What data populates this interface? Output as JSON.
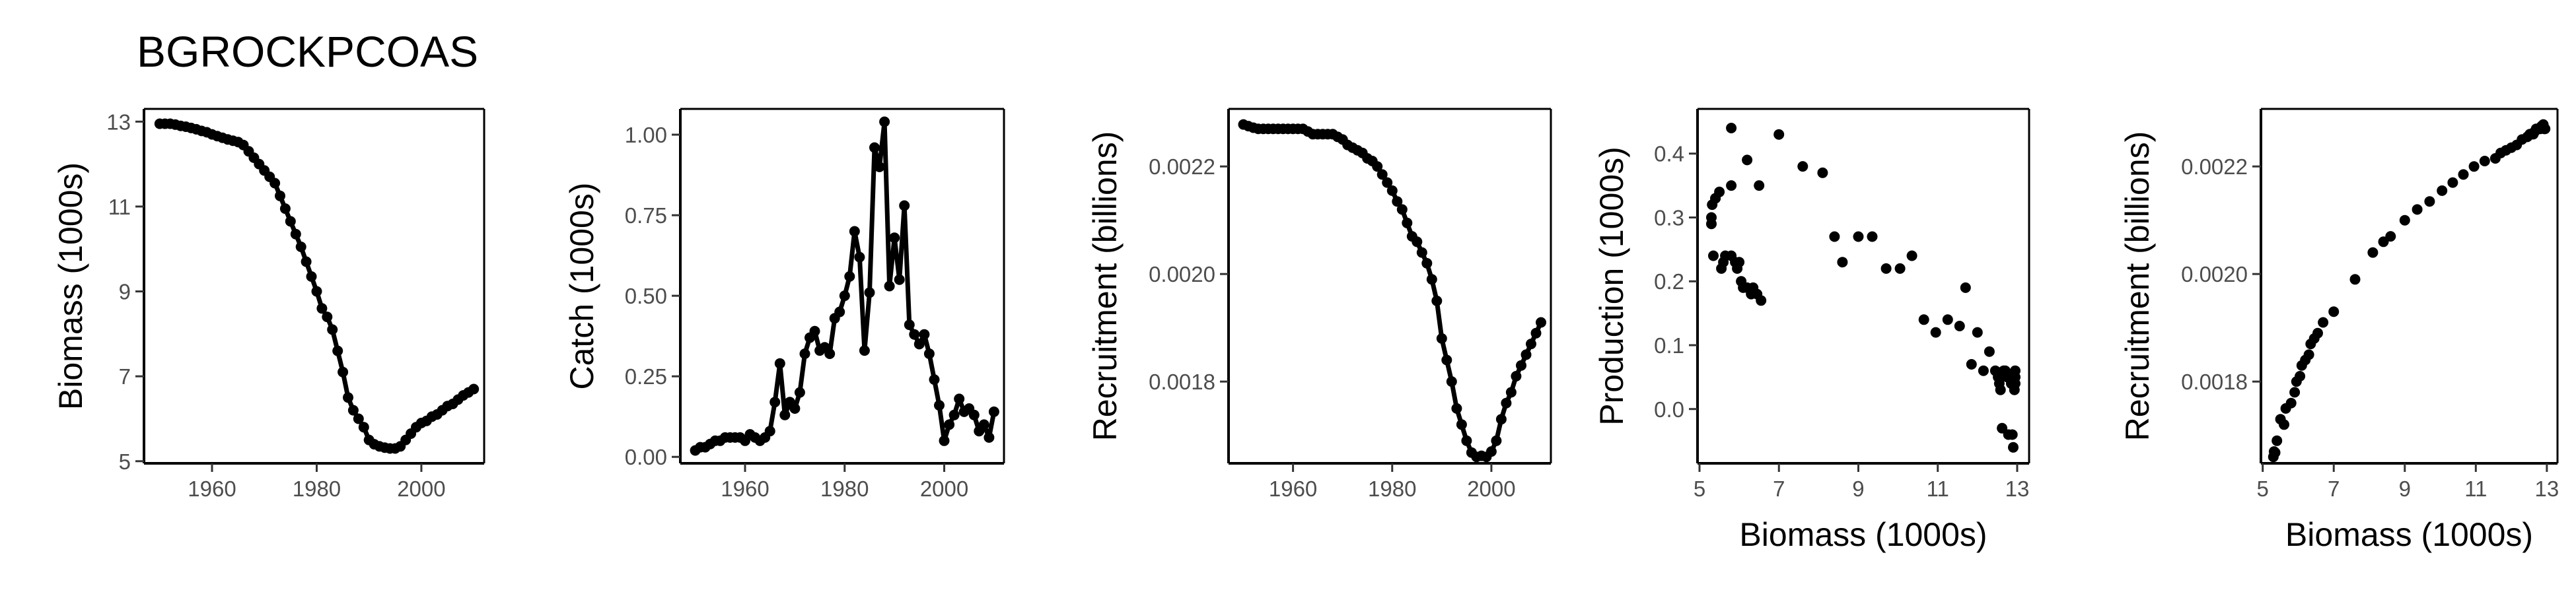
{
  "figure": {
    "title": "BGROCKPCOAS"
  },
  "chart_data": [
    {
      "id": "biomass-ts",
      "type": "line",
      "xlabel": "",
      "ylabel": "Biomass (1000s)",
      "xlim": [
        1947,
        2012
      ],
      "ylim": [
        4.95,
        13.3
      ],
      "xticks": [
        1960,
        1980,
        2000
      ],
      "yticks": [
        5,
        7,
        9,
        11,
        13
      ],
      "tick_labels_x": [
        "1960",
        "1980",
        "2000"
      ],
      "tick_labels_y": [
        "5",
        "7",
        "9",
        "11",
        "13"
      ],
      "series": [
        {
          "x": [
            1950,
            1951,
            1952,
            1953,
            1954,
            1955,
            1956,
            1957,
            1958,
            1959,
            1960,
            1961,
            1962,
            1963,
            1964,
            1965,
            1966,
            1967,
            1968,
            1969,
            1970,
            1971,
            1972,
            1973,
            1974,
            1975,
            1976,
            1977,
            1978,
            1979,
            1980,
            1981,
            1982,
            1983,
            1984,
            1985,
            1986,
            1987,
            1988,
            1989,
            1990,
            1991,
            1992,
            1993,
            1994,
            1995,
            1996,
            1997,
            1998,
            1999,
            2000,
            2001,
            2002,
            2003,
            2004,
            2005,
            2006,
            2007,
            2008,
            2009,
            2010
          ],
          "y": [
            12.95,
            12.95,
            12.95,
            12.93,
            12.9,
            12.88,
            12.85,
            12.82,
            12.78,
            12.75,
            12.7,
            12.66,
            12.62,
            12.58,
            12.55,
            12.52,
            12.45,
            12.3,
            12.15,
            12.0,
            11.85,
            11.7,
            11.55,
            11.25,
            10.95,
            10.65,
            10.35,
            10.05,
            9.7,
            9.35,
            9.0,
            8.6,
            8.4,
            8.1,
            7.6,
            7.1,
            6.5,
            6.2,
            6.0,
            5.8,
            5.5,
            5.4,
            5.35,
            5.32,
            5.3,
            5.3,
            5.35,
            5.5,
            5.65,
            5.8,
            5.9,
            5.95,
            6.05,
            6.1,
            6.2,
            6.3,
            6.35,
            6.45,
            6.55,
            6.62,
            6.7
          ]
        }
      ]
    },
    {
      "id": "catch-ts",
      "type": "line",
      "xlabel": "",
      "ylabel": "Catch (1000s)",
      "xlim": [
        1947,
        2012
      ],
      "ylim": [
        -0.02,
        1.08
      ],
      "xticks": [
        1960,
        1980,
        2000
      ],
      "yticks": [
        0,
        0.25,
        0.5,
        0.75,
        1.0
      ],
      "tick_labels_x": [
        "1960",
        "1980",
        "2000"
      ],
      "tick_labels_y": [
        "0.00",
        "0.25",
        "0.50",
        "0.75",
        "1.00"
      ],
      "series": [
        {
          "x": [
            1950,
            1951,
            1952,
            1953,
            1954,
            1955,
            1956,
            1957,
            1958,
            1959,
            1960,
            1961,
            1962,
            1963,
            1964,
            1965,
            1966,
            1967,
            1968,
            1969,
            1970,
            1971,
            1972,
            1973,
            1974,
            1975,
            1976,
            1977,
            1978,
            1979,
            1980,
            1981,
            1982,
            1983,
            1984,
            1985,
            1986,
            1987,
            1988,
            1989,
            1990,
            1991,
            1992,
            1993,
            1994,
            1995,
            1996,
            1997,
            1998,
            1999,
            2000,
            2001,
            2002,
            2003,
            2004,
            2005,
            2006,
            2007,
            2008,
            2009,
            2010
          ],
          "y": [
            0.02,
            0.03,
            0.03,
            0.04,
            0.05,
            0.05,
            0.06,
            0.06,
            0.06,
            0.06,
            0.05,
            0.07,
            0.06,
            0.05,
            0.06,
            0.08,
            0.17,
            0.29,
            0.13,
            0.17,
            0.15,
            0.2,
            0.32,
            0.37,
            0.39,
            0.33,
            0.34,
            0.32,
            0.43,
            0.45,
            0.5,
            0.56,
            0.7,
            0.62,
            0.33,
            0.51,
            0.96,
            0.9,
            1.04,
            0.53,
            0.68,
            0.55,
            0.78,
            0.41,
            0.38,
            0.35,
            0.38,
            0.32,
            0.24,
            0.16,
            0.05,
            0.1,
            0.13,
            0.18,
            0.14,
            0.15,
            0.13,
            0.08,
            0.1,
            0.06,
            0.14
          ]
        }
      ]
    },
    {
      "id": "recruitment-ts",
      "type": "line",
      "xlabel": "",
      "ylabel": "Recruitment (billions)",
      "xlim": [
        1947,
        2012
      ],
      "ylim": [
        0.001648,
        0.002307
      ],
      "xticks": [
        1960,
        1980,
        2000
      ],
      "yticks": [
        0.0018,
        0.002,
        0.0022
      ],
      "tick_labels_x": [
        "1960",
        "1980",
        "2000"
      ],
      "tick_labels_y": [
        "0.0018",
        "0.0020",
        "0.0022"
      ],
      "series": [
        {
          "x": [
            1950,
            1951,
            1952,
            1953,
            1954,
            1955,
            1956,
            1957,
            1958,
            1959,
            1960,
            1961,
            1962,
            1963,
            1964,
            1965,
            1966,
            1967,
            1968,
            1969,
            1970,
            1971,
            1972,
            1973,
            1974,
            1975,
            1976,
            1977,
            1978,
            1979,
            1980,
            1981,
            1982,
            1983,
            1984,
            1985,
            1986,
            1987,
            1988,
            1989,
            1990,
            1991,
            1992,
            1993,
            1994,
            1995,
            1996,
            1997,
            1998,
            1999,
            2000,
            2001,
            2002,
            2003,
            2004,
            2005,
            2006,
            2007,
            2008,
            2009,
            2010
          ],
          "y": [
            0.002278,
            0.002275,
            0.002272,
            0.00227,
            0.00227,
            0.00227,
            0.00227,
            0.00227,
            0.00227,
            0.00227,
            0.00227,
            0.00227,
            0.00227,
            0.002265,
            0.00226,
            0.00226,
            0.00226,
            0.00226,
            0.00226,
            0.002255,
            0.00225,
            0.00224,
            0.002235,
            0.00223,
            0.002225,
            0.002215,
            0.00221,
            0.0022,
            0.002185,
            0.00217,
            0.002155,
            0.002135,
            0.00212,
            0.002095,
            0.00207,
            0.00206,
            0.00204,
            0.00202,
            0.00199,
            0.00195,
            0.00188,
            0.00184,
            0.0018,
            0.00175,
            0.00172,
            0.00169,
            0.001668,
            0.00166,
            0.001662,
            0.00166,
            0.00167,
            0.00169,
            0.00173,
            0.00176,
            0.00178,
            0.00181,
            0.00183,
            0.00185,
            0.00187,
            0.00189,
            0.00191
          ]
        }
      ]
    },
    {
      "id": "production-vs-biomass",
      "type": "scatter",
      "xlabel": "Biomass (1000s)",
      "ylabel": "Production (1000s)",
      "xlim": [
        4.95,
        13.3
      ],
      "ylim": [
        -0.085,
        0.47
      ],
      "xticks": [
        5,
        7,
        9,
        11,
        13
      ],
      "yticks": [
        0,
        0.1,
        0.2,
        0.3,
        0.4
      ],
      "tick_labels_x": [
        "5",
        "7",
        "9",
        "11",
        "13"
      ],
      "tick_labels_y": [
        "0.0",
        "0.1",
        "0.2",
        "0.3",
        "0.4"
      ],
      "series": [
        {
          "x": [
            5.3,
            5.32,
            5.35,
            5.4,
            5.5,
            5.6,
            5.65,
            5.8,
            5.8,
            5.9,
            5.95,
            6.05,
            6.1,
            6.2,
            6.3,
            6.35,
            6.45,
            6.55,
            5.3,
            5.4,
            5.55,
            5.8,
            6.0,
            6.2,
            6.5,
            7.0,
            7.6,
            8.1,
            8.4,
            8.6,
            9.0,
            9.35,
            9.7,
            10.05,
            10.35,
            10.65,
            10.95,
            11.25,
            11.55,
            11.7,
            11.85,
            12.0,
            12.15,
            12.3,
            12.45,
            12.52,
            12.55,
            12.58,
            12.62,
            12.66,
            12.7,
            12.75,
            12.78,
            12.82,
            12.85,
            12.88,
            12.9,
            12.93,
            12.95,
            12.95,
            12.95
          ],
          "y": [
            0.29,
            0.32,
            0.24,
            0.33,
            0.34,
            0.23,
            0.24,
            0.44,
            0.24,
            0.23,
            0.22,
            0.2,
            0.19,
            0.19,
            0.18,
            0.19,
            0.18,
            0.17,
            0.3,
            0.33,
            0.22,
            0.35,
            0.23,
            0.39,
            0.35,
            0.43,
            0.38,
            0.37,
            0.27,
            0.23,
            0.27,
            0.27,
            0.22,
            0.22,
            0.24,
            0.14,
            0.12,
            0.14,
            0.13,
            0.19,
            0.07,
            0.12,
            0.06,
            0.09,
            0.06,
            0.05,
            0.04,
            0.03,
            -0.03,
            0.06,
            0.06,
            0.05,
            -0.04,
            0.05,
            0.04,
            -0.04,
            -0.06,
            0.03,
            0.05,
            0.06,
            0.04
          ]
        }
      ]
    },
    {
      "id": "recruitment-vs-biomass",
      "type": "scatter",
      "xlabel": "Biomass (1000s)",
      "ylabel": "Recruitment (billions)",
      "xlim": [
        4.95,
        13.3
      ],
      "ylim": [
        0.001648,
        0.002307
      ],
      "xticks": [
        5,
        7,
        9,
        11,
        13
      ],
      "yticks": [
        0.0018,
        0.002,
        0.0022
      ],
      "tick_labels_x": [
        "5",
        "7",
        "9",
        "11",
        "13"
      ],
      "tick_labels_y": [
        "0.0018",
        "0.0020",
        "0.0022"
      ],
      "series": [
        {
          "x": [
            5.3,
            5.32,
            5.35,
            5.4,
            5.5,
            5.6,
            5.65,
            5.8,
            5.9,
            5.95,
            6.05,
            6.1,
            6.2,
            6.3,
            6.35,
            6.45,
            6.55,
            6.7,
            7.0,
            7.6,
            8.1,
            8.4,
            8.6,
            9.0,
            9.35,
            9.7,
            10.05,
            10.35,
            10.65,
            10.95,
            11.25,
            11.55,
            11.7,
            11.85,
            12.0,
            12.15,
            12.3,
            12.45,
            12.52,
            12.55,
            12.58,
            12.62,
            12.66,
            12.7,
            12.75,
            12.78,
            12.82,
            12.85,
            12.88,
            12.9,
            12.93,
            12.95
          ],
          "y": [
            0.00166,
            0.00167,
            0.001668,
            0.00169,
            0.00173,
            0.00172,
            0.00175,
            0.00176,
            0.00178,
            0.0018,
            0.00181,
            0.00183,
            0.00184,
            0.00185,
            0.00187,
            0.00188,
            0.00189,
            0.00191,
            0.00193,
            0.00199,
            0.00204,
            0.00206,
            0.00207,
            0.0021,
            0.00212,
            0.002135,
            0.002155,
            0.00217,
            0.002185,
            0.0022,
            0.00221,
            0.002215,
            0.002225,
            0.00223,
            0.002235,
            0.00224,
            0.00225,
            0.002255,
            0.00226,
            0.00226,
            0.00226,
            0.00226,
            0.002265,
            0.00227,
            0.00227,
            0.00227,
            0.00227,
            0.002275,
            0.002272,
            0.002278,
            0.00227,
            0.00227
          ]
        }
      ]
    }
  ]
}
